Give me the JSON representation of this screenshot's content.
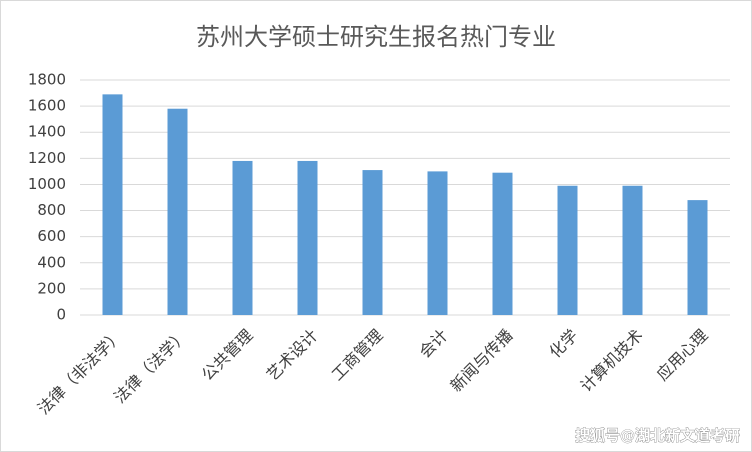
{
  "chart_data": {
    "type": "bar",
    "title": "苏州大学硕士研究生报名热门专业",
    "categories": [
      "法律（非法学）",
      "法律（法学）",
      "公共管理",
      "艺术设计",
      "工商管理",
      "会计",
      "新闻与传播",
      "化学",
      "计算机技术",
      "应用心理"
    ],
    "values": [
      1690,
      1580,
      1180,
      1180,
      1110,
      1100,
      1090,
      990,
      990,
      880
    ],
    "color": "#5b9bd5",
    "ylim": [
      0,
      1800
    ],
    "yticks": [
      0,
      200,
      400,
      600,
      800,
      1000,
      1200,
      1400,
      1600,
      1800
    ],
    "grid": true,
    "annotation": "搜狐号@湖北新文道考研"
  }
}
